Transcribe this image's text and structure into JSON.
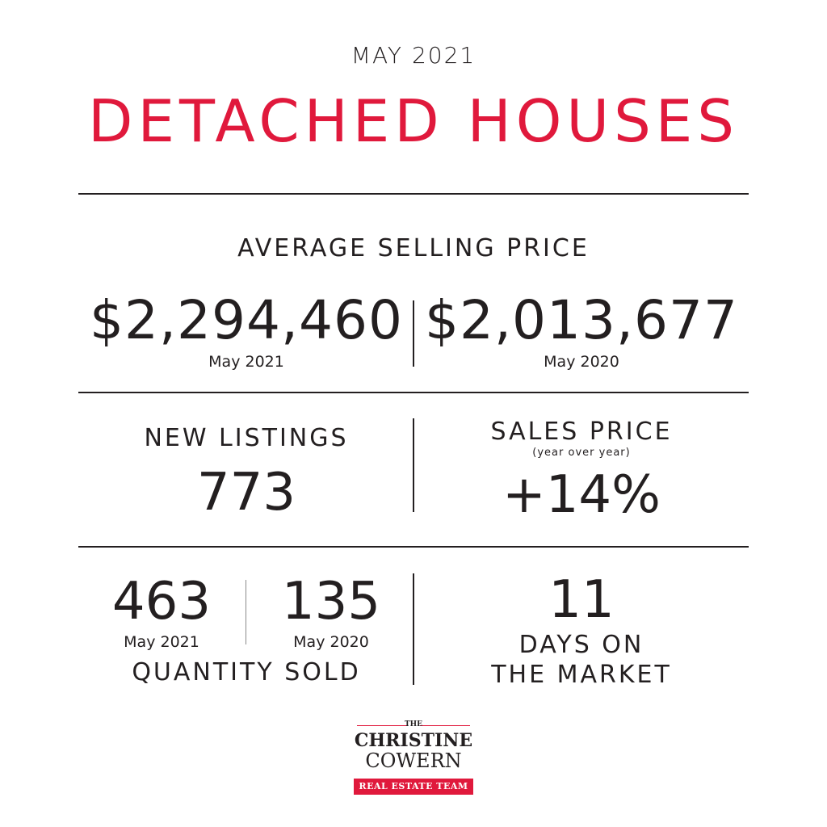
{
  "header": {
    "month": "MAY 2021",
    "title": "DETACHED HOUSES"
  },
  "average_selling_price": {
    "heading": "AVERAGE SELLING PRICE",
    "current": {
      "value": "$2,294,460",
      "label": "May 2021"
    },
    "previous": {
      "value": "$2,013,677",
      "label": "May 2020"
    }
  },
  "new_listings": {
    "heading": "NEW LISTINGS",
    "value": "773"
  },
  "sales_price": {
    "heading": "SALES PRICE",
    "note": "(year over year)",
    "value": "+14%"
  },
  "quantity_sold": {
    "current": {
      "value": "463",
      "label": "May 2021"
    },
    "previous": {
      "value": "135",
      "label": "May 2020"
    },
    "heading": "QUANTITY SOLD"
  },
  "days_on_market": {
    "value": "11",
    "line1": "DAYS ON",
    "line2": "THE MARKET"
  },
  "logo": {
    "the": "THE",
    "name_line1": "CHRISTINE",
    "name_line2": "COWERN",
    "tagline": "REAL ESTATE TEAM"
  },
  "colors": {
    "accent": "#e0193c",
    "text": "#231f20"
  }
}
